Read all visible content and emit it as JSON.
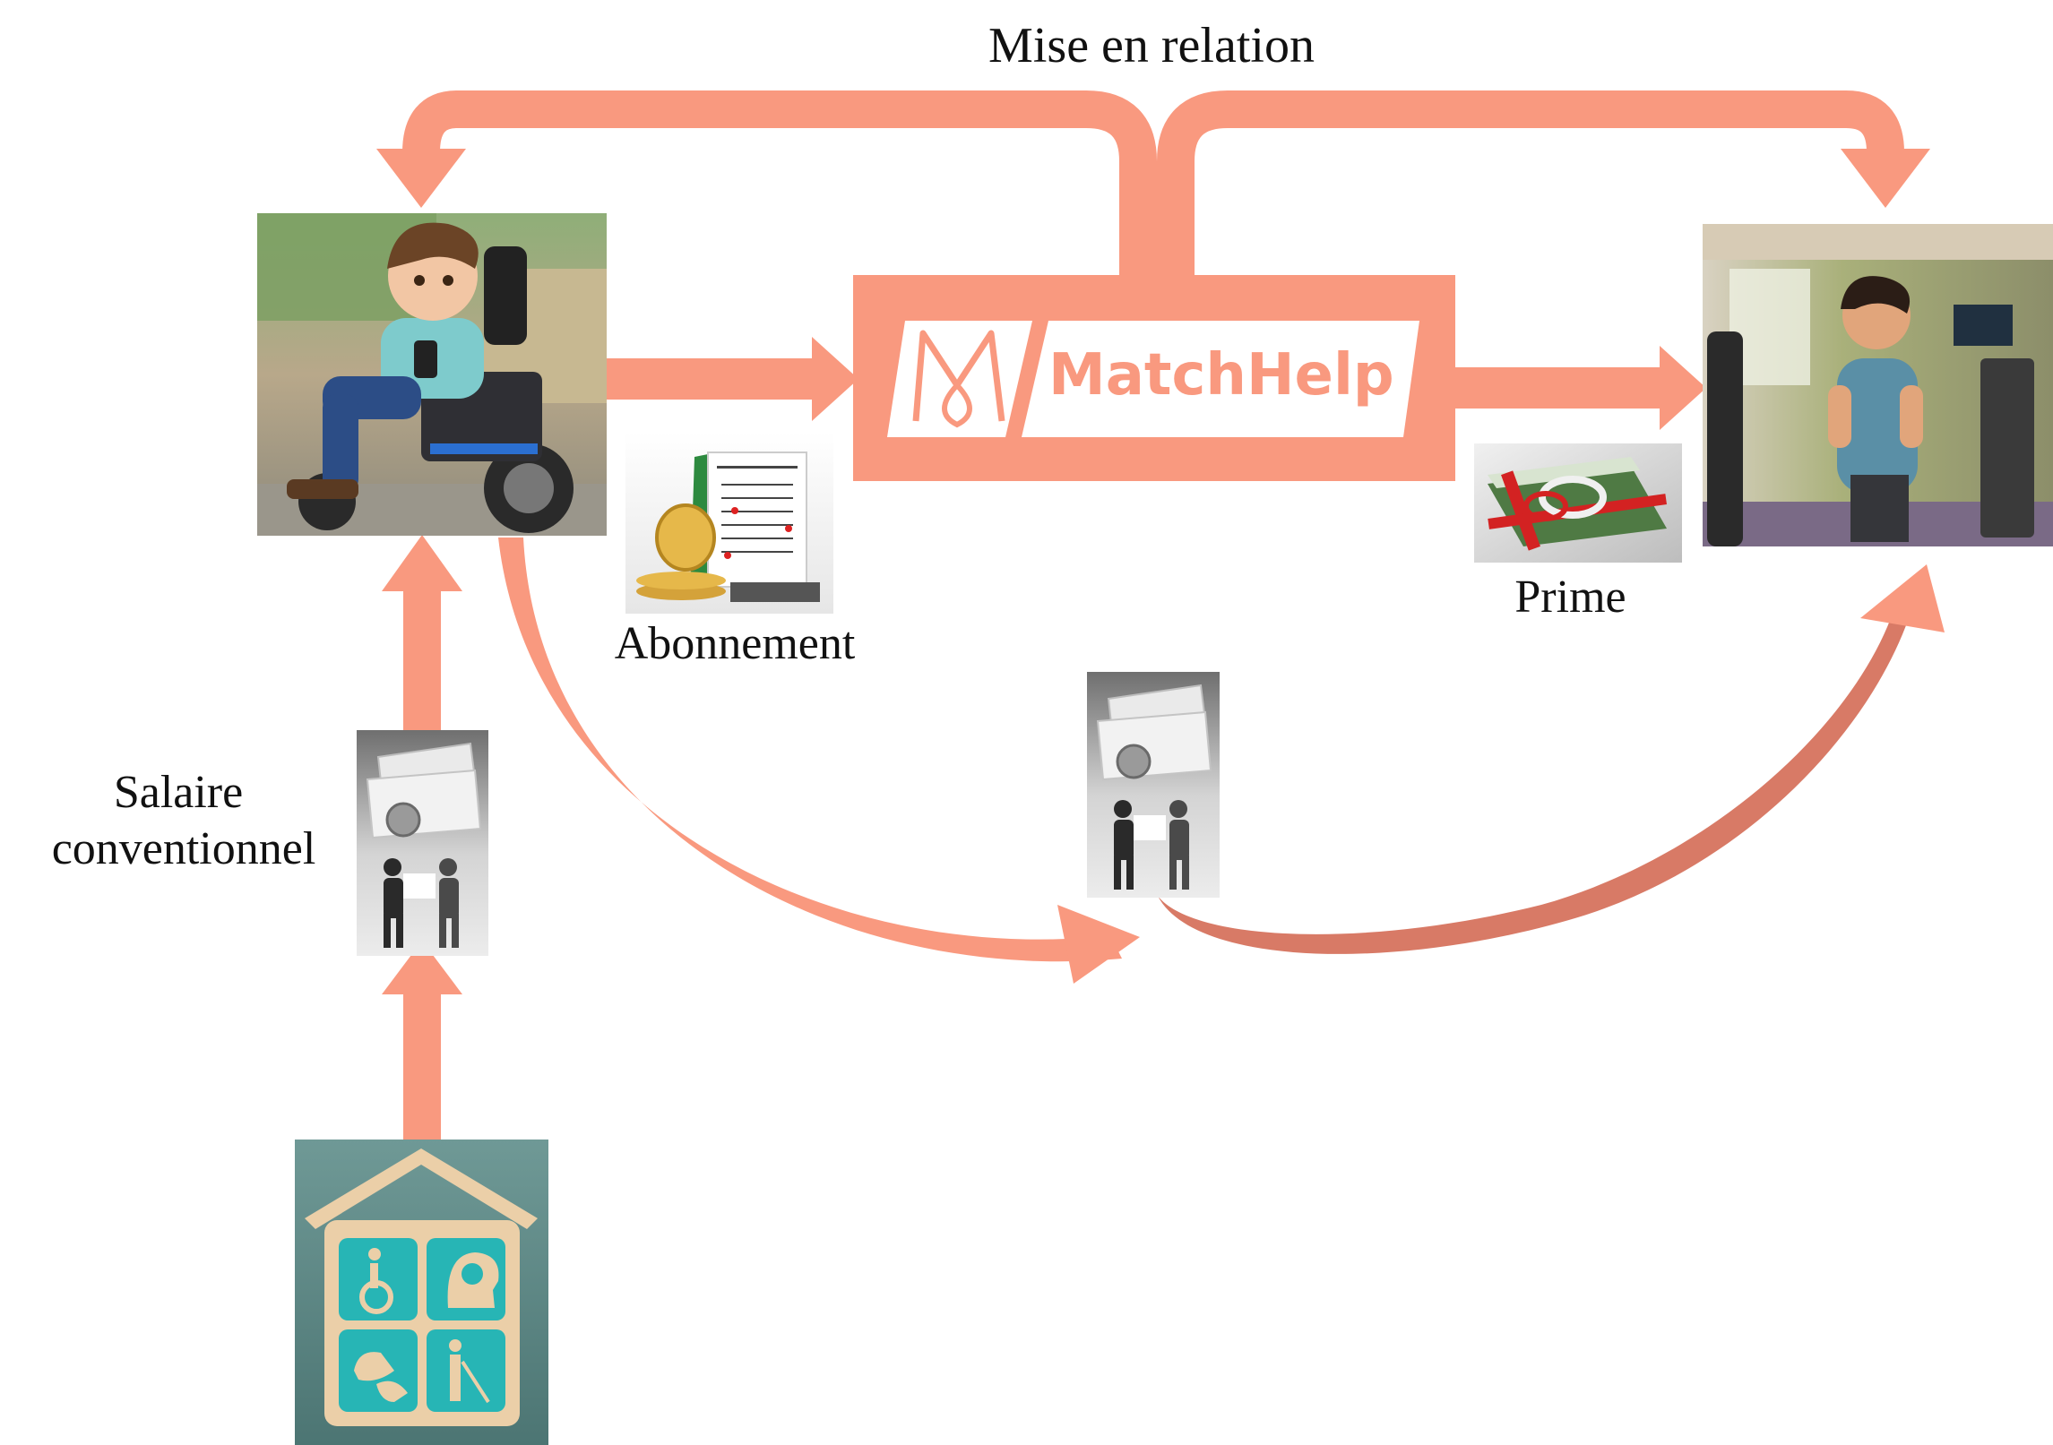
{
  "diagram": {
    "top_label": "Mise en relation",
    "subscription_label": "Abonnement",
    "bonus_label": "Prime",
    "salary_label_line1": "Salaire",
    "salary_label_line2": "conventionnel",
    "platform_name": "MatchHelp"
  },
  "colors": {
    "arrow": "#F9997F",
    "arrow_dark": "#D87A66",
    "box_white": "#ffffff",
    "logo_text": "#F9997F",
    "house_bg": "#5E8C89",
    "tile": "#27B5B5",
    "wood": "#EBCFA8"
  }
}
